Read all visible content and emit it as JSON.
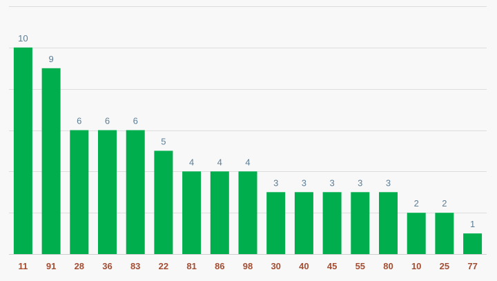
{
  "chart_data": {
    "type": "bar",
    "categories": [
      "11",
      "91",
      "28",
      "36",
      "83",
      "22",
      "81",
      "86",
      "98",
      "30",
      "40",
      "45",
      "55",
      "80",
      "10",
      "25",
      "77"
    ],
    "values": [
      10,
      9,
      6,
      6,
      6,
      5,
      4,
      4,
      4,
      3,
      3,
      3,
      3,
      3,
      2,
      2,
      1
    ],
    "ylim": [
      0,
      12
    ],
    "grid": true,
    "colors": {
      "bar": "#00ae4d",
      "value_label": "#5b7d96",
      "category_label": "#a34d33",
      "grid": "#dcdcdc"
    }
  }
}
